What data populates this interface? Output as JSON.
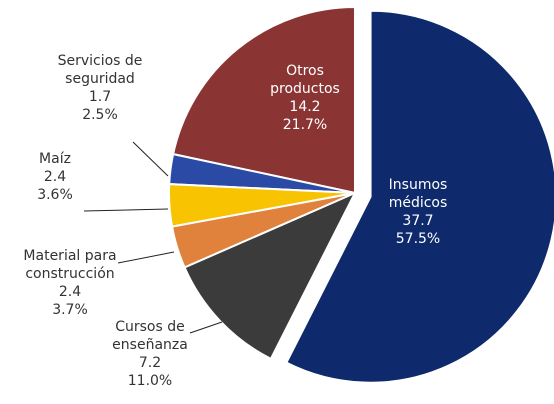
{
  "chart_data": {
    "type": "pie",
    "categories": [
      "Insumos médicos",
      "Cursos de enseñanza",
      "Material para construcción",
      "Maíz",
      "Servicios de seguridad",
      "Otros productos"
    ],
    "values": [
      37.7,
      7.2,
      2.4,
      2.4,
      1.7,
      14.2
    ],
    "percent_labels": [
      "57.5%",
      "11.0%",
      "3.7%",
      "3.6%",
      "2.5%",
      "21.7%"
    ],
    "colors": [
      "#0e2a6c",
      "#3b3b3b",
      "#e0813c",
      "#f8c300",
      "#2b4aa6",
      "#8b3434"
    ],
    "exploded": [
      true,
      false,
      false,
      false,
      false,
      false
    ]
  }
}
